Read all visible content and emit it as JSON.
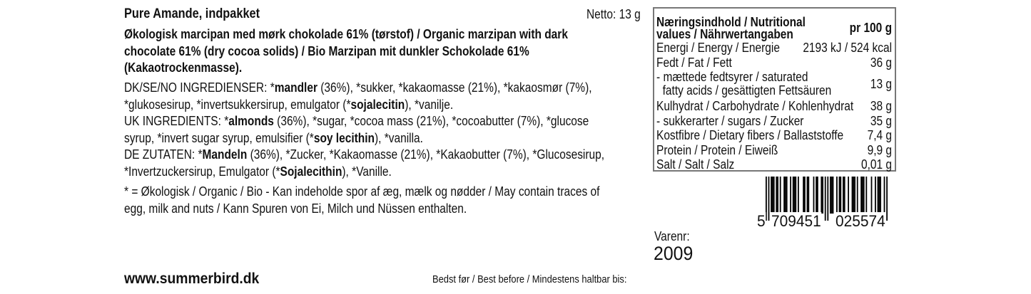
{
  "product": {
    "title": "Pure Amande, indpakket",
    "netto": "Netto: 13 g"
  },
  "description": [
    "Økologisk marcipan med mørk chokolade 61% (tørstof) / Organic marzipan with dark",
    "chocolate 61% (dry cocoa solids) / Bio Marzipan mit dunkler Schokolade 61%",
    "(Kakaotrockenmasse)."
  ],
  "ingredients": [
    [
      {
        "t": "DK/SE/NO INGREDIENSER: *"
      },
      {
        "t": "mandler",
        "b": true
      },
      {
        "t": " (36%), *sukker, *kakaomasse (21%), *kakaosmør (7%),"
      }
    ],
    [
      {
        "t": "*glukosesirup, *invertsukkersirup, emulgator (*"
      },
      {
        "t": "sojalecitin",
        "b": true
      },
      {
        "t": "), *vanilje."
      }
    ],
    [
      {
        "t": "UK INGREDIENTS: *"
      },
      {
        "t": "almonds",
        "b": true
      },
      {
        "t": " (36%), *sugar, *cocoa mass (21%), *cocoabutter (7%), *glucose"
      }
    ],
    [
      {
        "t": "syrup, *invert sugar syrup, emulsifier (*"
      },
      {
        "t": "soy lecithin",
        "b": true
      },
      {
        "t": "), *vanilla."
      }
    ],
    [
      {
        "t": "DE ZUTATEN: *"
      },
      {
        "t": "Mandeln",
        "b": true
      },
      {
        "t": " (36%), *Zucker, *Kakaomasse (21%), *Kakaobutter (7%), *Glucosesirup,"
      }
    ],
    [
      {
        "t": "*Invertzuckersirup, Emulgator (*"
      },
      {
        "t": "Sojalecithin",
        "b": true
      },
      {
        "t": "), *Vanille."
      }
    ],
    [
      {
        "t": "* = Økologisk / Organic / Bio - Kan indeholde spor af æg, mælk og nødder / May contain traces of"
      }
    ],
    [
      {
        "t": "egg, milk and nuts / Kann Spuren von Ei, Milch und Nüssen enthalten."
      }
    ]
  ],
  "nutrition": {
    "header": [
      "Næringsindhold / Nutritional",
      "values / Nährwertangaben"
    ],
    "per": "pr 100 g",
    "rows": [
      {
        "label": [
          "Energi / Energy / Energie"
        ],
        "value": "2193 kJ / 524 kcal"
      },
      {
        "label": [
          "Fedt / Fat / Fett"
        ],
        "value": "36 g"
      },
      {
        "label": [
          "- mættede fedtsyrer / saturated",
          "  fatty acids / gesättigten Fettsäuren"
        ],
        "value": "13 g"
      },
      {
        "label": [
          "Kulhydrat / Carbohydrate / Kohlenhydrat"
        ],
        "value": "38 g"
      },
      {
        "label": [
          "- sukkerarter / sugars / Zucker"
        ],
        "value": "35 g"
      },
      {
        "label": [
          "Kostfibre / Dietary fibers / Ballaststoffe"
        ],
        "value": "7,4 g"
      },
      {
        "label": [
          "Protein / Protein / Eiweiß"
        ],
        "value": "9,9 g"
      },
      {
        "label": [
          "Salt / Salt / Salz"
        ],
        "value": "0,01 g"
      }
    ]
  },
  "barcode": {
    "ean": "5709451025574",
    "first": "5",
    "left": "709451",
    "right": "025574"
  },
  "varenr": {
    "label": "Varenr:",
    "value": "2009"
  },
  "footer": {
    "website": "www.summerbird.dk",
    "best_before": "Bedst før / Best before / Mindestens haltbar bis:"
  }
}
